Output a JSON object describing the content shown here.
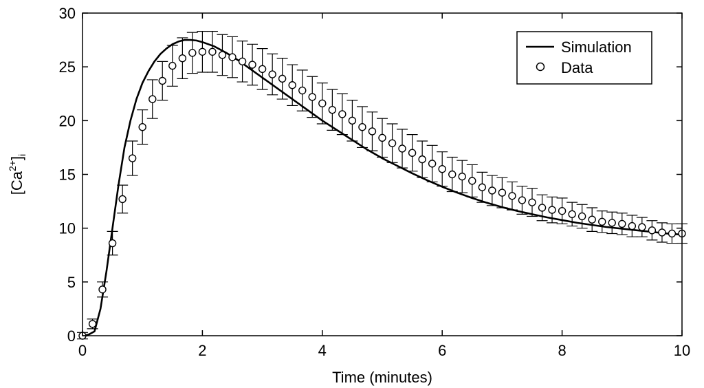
{
  "chart_data": {
    "type": "line",
    "xlabel": "Time (minutes)",
    "ylabel": {
      "main": "[Ca",
      "superscript": "2+",
      "close": "]",
      "subscript": "i"
    },
    "xlim": [
      0,
      10
    ],
    "ylim": [
      0,
      30
    ],
    "xticks": [
      "0",
      "2",
      "4",
      "6",
      "8",
      "10"
    ],
    "yticks": [
      "0",
      "5",
      "10",
      "15",
      "20",
      "25",
      "30"
    ],
    "grid": false,
    "legend_position": "top-right",
    "series": [
      {
        "name": "Simulation",
        "style": "solid-line",
        "x": [
          0,
          0.1,
          0.2,
          0.3,
          0.4,
          0.5,
          0.6,
          0.7,
          0.8,
          0.9,
          1.0,
          1.1,
          1.2,
          1.3,
          1.4,
          1.5,
          1.6,
          1.7,
          1.8,
          1.9,
          2.0,
          2.2,
          2.4,
          2.6,
          2.8,
          3.0,
          3.25,
          3.5,
          3.75,
          4.0,
          4.25,
          4.5,
          4.75,
          5.0,
          5.25,
          5.5,
          5.75,
          6.0,
          6.25,
          6.5,
          6.75,
          7.0,
          7.25,
          7.5,
          7.75,
          8.0,
          8.25,
          8.5,
          8.75,
          9.0,
          9.25,
          9.5,
          9.75,
          10.0
        ],
        "y": [
          0.0,
          0.1,
          0.4,
          2.5,
          6.0,
          10.0,
          14.0,
          17.5,
          20.0,
          22.0,
          23.5,
          24.6,
          25.5,
          26.2,
          26.7,
          27.1,
          27.35,
          27.5,
          27.5,
          27.45,
          27.3,
          26.9,
          26.3,
          25.6,
          24.8,
          24.0,
          23.0,
          22.0,
          21.0,
          20.0,
          19.1,
          18.2,
          17.3,
          16.5,
          15.8,
          15.1,
          14.45,
          13.85,
          13.3,
          12.8,
          12.35,
          11.95,
          11.6,
          11.3,
          11.0,
          10.75,
          10.5,
          10.3,
          10.1,
          9.95,
          9.8,
          9.65,
          9.5,
          9.4
        ]
      },
      {
        "name": "Data",
        "style": "open-circle-markers",
        "x": [
          0,
          0.167,
          0.333,
          0.5,
          0.667,
          0.833,
          1.0,
          1.167,
          1.333,
          1.5,
          1.667,
          1.833,
          2.0,
          2.167,
          2.333,
          2.5,
          2.667,
          2.833,
          3.0,
          3.167,
          3.333,
          3.5,
          3.667,
          3.833,
          4.0,
          4.167,
          4.333,
          4.5,
          4.667,
          4.833,
          5.0,
          5.167,
          5.333,
          5.5,
          5.667,
          5.833,
          6.0,
          6.167,
          6.333,
          6.5,
          6.667,
          6.833,
          7.0,
          7.167,
          7.333,
          7.5,
          7.667,
          7.833,
          8.0,
          8.167,
          8.333,
          8.5,
          8.667,
          8.833,
          9.0,
          9.167,
          9.333,
          9.5,
          9.667,
          9.833,
          10.0
        ],
        "y": [
          0.0,
          1.1,
          4.3,
          8.6,
          12.7,
          16.5,
          19.4,
          22.0,
          23.7,
          25.1,
          25.8,
          26.3,
          26.4,
          26.4,
          26.1,
          25.9,
          25.5,
          25.2,
          24.8,
          24.3,
          23.9,
          23.3,
          22.8,
          22.2,
          21.6,
          21.0,
          20.6,
          20.0,
          19.4,
          19.0,
          18.4,
          17.9,
          17.4,
          17.0,
          16.4,
          16.0,
          15.5,
          15.0,
          14.8,
          14.4,
          13.8,
          13.5,
          13.3,
          13.0,
          12.6,
          12.4,
          11.9,
          11.7,
          11.6,
          11.3,
          11.1,
          10.8,
          10.6,
          10.5,
          10.4,
          10.2,
          10.1,
          9.8,
          9.6,
          9.5,
          9.5
        ],
        "error": [
          0.3,
          0.45,
          0.7,
          1.1,
          1.3,
          1.6,
          1.6,
          1.8,
          1.8,
          1.9,
          1.9,
          1.9,
          1.9,
          1.9,
          1.9,
          1.9,
          1.9,
          1.9,
          1.9,
          1.9,
          1.9,
          1.9,
          1.9,
          1.9,
          1.9,
          1.9,
          1.9,
          1.9,
          1.9,
          1.8,
          1.8,
          1.8,
          1.8,
          1.7,
          1.7,
          1.7,
          1.6,
          1.6,
          1.5,
          1.5,
          1.4,
          1.4,
          1.4,
          1.3,
          1.3,
          1.3,
          1.2,
          1.2,
          1.2,
          1.1,
          1.1,
          1.1,
          1.0,
          1.0,
          1.0,
          1.0,
          0.9,
          0.9,
          0.9,
          0.9,
          0.9
        ]
      }
    ]
  }
}
